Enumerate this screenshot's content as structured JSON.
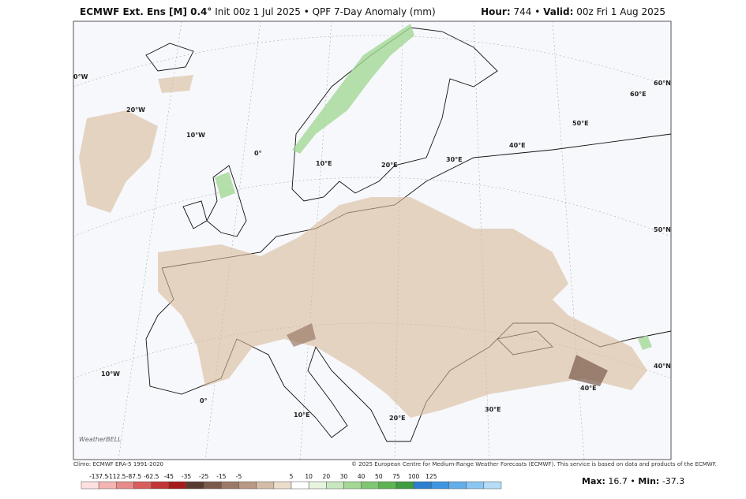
{
  "header": {
    "model": "ECMWF Ext. Ens [M] 0.4°",
    "init": "Init 00z 1 Jul 2025",
    "sep": "•",
    "product": "QPF 7-Day Anomaly (mm)",
    "hour_label": "Hour:",
    "hour": "744",
    "sep2": "•",
    "valid_label": "Valid:",
    "valid": "00z Fri 1 Aug 2025"
  },
  "map": {
    "labels": [
      "0°W",
      "20°W",
      "10°W",
      "0°",
      "10°E",
      "20°E",
      "30°E",
      "40°E",
      "50°E",
      "60°E",
      "60°N",
      "50°N",
      "40°N",
      "40°E",
      "30°E",
      "20°E",
      "10°E",
      "0°",
      "10°W"
    ],
    "logo": "WeatherBELL"
  },
  "footer": {
    "climo": "Climo: ECMWF ERA-5 1991-2020",
    "copyright": "© 2025 European Centre for Medium-Range Weather Forecasts (ECMWF). This service is based on data and products of the ECMWF."
  },
  "colorbar": {
    "ticks": [
      -137.5,
      -112.5,
      -87.5,
      -62.5,
      -45,
      -35,
      -25,
      -15,
      -5,
      5,
      10,
      20,
      30,
      40,
      50,
      75,
      100,
      125
    ],
    "colors": [
      "#fde0e0",
      "#f4b4b4",
      "#e88a8a",
      "#d85d5d",
      "#c43535",
      "#a51c1c",
      "#5a3a30",
      "#7b5a4a",
      "#9a7a66",
      "#b89a84",
      "#d4bca6",
      "#ecdccb",
      "#ffffff",
      "#e6f4e0",
      "#c6e8bc",
      "#a3d896",
      "#7fc672",
      "#5cb552",
      "#3f9c40",
      "#2c7fd0",
      "#3f95e0",
      "#62aeea",
      "#8cc6f2",
      "#b4dbf7"
    ]
  },
  "stats": {
    "max_label": "Max:",
    "max": "16.7",
    "sep": "•",
    "min_label": "Min:",
    "min": "-37.3"
  }
}
